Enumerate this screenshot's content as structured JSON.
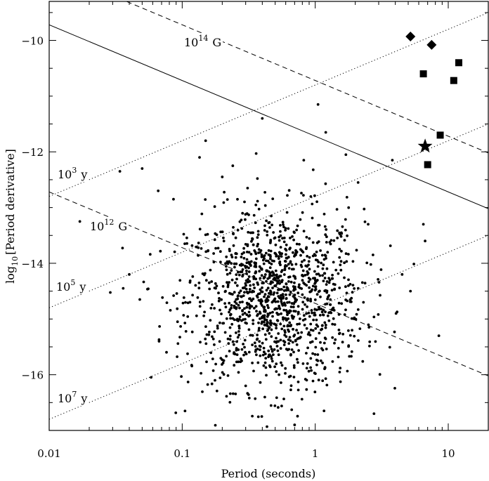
{
  "chart_data": {
    "type": "scatter",
    "title": "",
    "xlabel": "Period (seconds)",
    "ylabel_prefix": "log",
    "ylabel_sub": "10",
    "ylabel_rest": "[Period derivative]",
    "x_scale": "log",
    "xlim": [
      0.01,
      20
    ],
    "ylim": [
      -17,
      -9.3
    ],
    "x_ticks": [
      0.01,
      0.1,
      1,
      10
    ],
    "x_tick_labels": [
      "0.01",
      "0.1",
      "1",
      "10"
    ],
    "y_ticks": [
      -10,
      -12,
      -14,
      -16
    ],
    "y_tick_labels": [
      "−10",
      "−12",
      "−14",
      "−16"
    ],
    "grid": false,
    "lines": [
      {
        "style": "dashed",
        "label_base": "10",
        "label_exp": "14",
        "label_unit": "G",
        "x": [
          0.01,
          20
        ],
        "y": [
          -8.72,
          -12.02
        ]
      },
      {
        "style": "dashed",
        "label_base": "10",
        "label_exp": "12",
        "label_unit": "G",
        "x": [
          0.01,
          20
        ],
        "y": [
          -12.72,
          -16.02
        ]
      },
      {
        "style": "solid",
        "x": [
          0.01,
          20
        ],
        "y": [
          -9.72,
          -13.02
        ]
      },
      {
        "style": "dotted",
        "label_base": "10",
        "label_exp": "3",
        "label_unit": "y",
        "x": [
          0.01,
          20
        ],
        "y": [
          -12.8,
          -9.5
        ]
      },
      {
        "style": "dotted",
        "label_base": "10",
        "label_exp": "5",
        "label_unit": "y",
        "x": [
          0.01,
          20
        ],
        "y": [
          -14.8,
          -11.5
        ]
      },
      {
        "style": "dotted",
        "label_base": "10",
        "label_exp": "7",
        "label_unit": "y",
        "x": [
          0.01,
          20
        ],
        "y": [
          -16.8,
          -13.5
        ]
      }
    ],
    "highlight_series": [
      {
        "marker": "diamond",
        "points": [
          [
            5.2,
            -9.93
          ],
          [
            7.5,
            -10.08
          ]
        ]
      },
      {
        "marker": "square",
        "points": [
          [
            6.5,
            -10.6
          ],
          [
            12.0,
            -10.4
          ],
          [
            11.0,
            -10.72
          ],
          [
            8.7,
            -11.7
          ],
          [
            7.0,
            -12.23
          ]
        ]
      },
      {
        "marker": "star",
        "points": [
          [
            6.7,
            -11.9
          ]
        ]
      }
    ],
    "field_population": {
      "marker": "dot",
      "approx_count": 1300,
      "center_log10_period": -0.3,
      "center_log10_pdot": -14.65,
      "spread_log10_period": 0.33,
      "spread_log10_pdot": 0.8
    },
    "outlier_points": [
      [
        0.017,
        -13.25
      ],
      [
        0.034,
        -12.35
      ],
      [
        0.05,
        -12.3
      ],
      [
        0.04,
        -14.2
      ],
      [
        0.048,
        -14.65
      ],
      [
        0.036,
        -14.45
      ],
      [
        0.066,
        -12.7
      ],
      [
        0.067,
        -15.4
      ],
      [
        0.086,
        -12.85
      ],
      [
        0.105,
        -16.65
      ],
      [
        0.135,
        -12.1
      ],
      [
        0.15,
        -11.8
      ],
      [
        0.2,
        -12.45
      ],
      [
        0.24,
        -12.25
      ],
      [
        0.3,
        -16.2
      ],
      [
        0.4,
        -11.4
      ],
      [
        0.7,
        -16.9
      ],
      [
        0.82,
        -12.15
      ],
      [
        1.05,
        -11.15
      ],
      [
        1.2,
        -11.65
      ],
      [
        1.7,
        -12.05
      ],
      [
        2.1,
        -12.55
      ],
      [
        2.5,
        -13.3
      ],
      [
        3.8,
        -12.15
      ],
      [
        4.5,
        -14.2
      ],
      [
        5.2,
        -14.5
      ],
      [
        6.5,
        -13.3
      ],
      [
        6.7,
        -13.6
      ],
      [
        8.5,
        -15.3
      ]
    ]
  }
}
